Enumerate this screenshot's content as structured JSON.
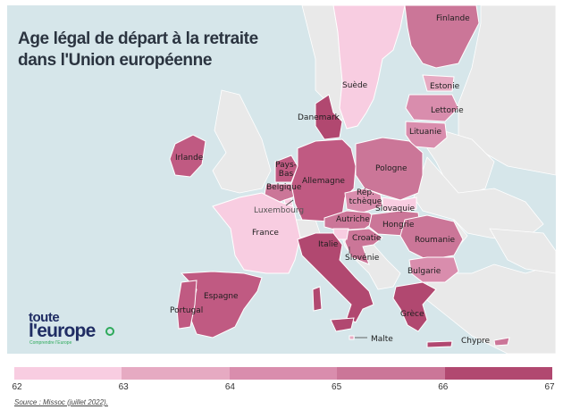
{
  "title": {
    "line1": "Age légal de départ à la retraite",
    "line2": "dans l'Union européenne"
  },
  "countries": [
    {
      "id": "finlande",
      "label": "Finlande",
      "value": 65
    },
    {
      "id": "suede",
      "label": "Suède",
      "value": 62
    },
    {
      "id": "estonie",
      "label": "Estonie",
      "value": 63
    },
    {
      "id": "lettonie",
      "label": "Lettonie",
      "value": 64
    },
    {
      "id": "lituanie",
      "label": "Lituanie",
      "value": 64
    },
    {
      "id": "danemark",
      "label": "Danemark",
      "value": 67
    },
    {
      "id": "irlande",
      "label": "Irlande",
      "value": 66
    },
    {
      "id": "pays-bas",
      "label": "Pays-\nBas",
      "value": 66
    },
    {
      "id": "belgique",
      "label": "Belgique",
      "value": 65
    },
    {
      "id": "allemagne",
      "label": "Allemagne",
      "value": 66
    },
    {
      "id": "pologne",
      "label": "Pologne",
      "value": 65
    },
    {
      "id": "rep-tcheque",
      "label": "Rép.\ntchèque",
      "value": 64
    },
    {
      "id": "slovaquie",
      "label": "Slovaquie",
      "value": 62
    },
    {
      "id": "luxembourg",
      "label": "Luxembourg",
      "value": 62
    },
    {
      "id": "autriche",
      "label": "Autriche",
      "value": 65
    },
    {
      "id": "hongrie",
      "label": "Hongrie",
      "value": 65
    },
    {
      "id": "france",
      "label": "France",
      "value": 62
    },
    {
      "id": "roumanie",
      "label": "Roumanie",
      "value": 65
    },
    {
      "id": "croatie",
      "label": "Croatie",
      "value": 65
    },
    {
      "id": "slovenie",
      "label": "Slovénie",
      "value": 62
    },
    {
      "id": "italie",
      "label": "Italie",
      "value": 67
    },
    {
      "id": "bulgarie",
      "label": "Bulgarie",
      "value": 64
    },
    {
      "id": "espagne",
      "label": "Espagne",
      "value": 66
    },
    {
      "id": "portugal",
      "label": "Portugal",
      "value": 66
    },
    {
      "id": "grece",
      "label": "Grèce",
      "value": 67
    },
    {
      "id": "malte",
      "label": "Malte",
      "value": 63
    },
    {
      "id": "chypre",
      "label": "Chypre",
      "value": 65
    }
  ],
  "legend": {
    "ticks": [
      "62",
      "63",
      "64",
      "65",
      "66",
      "67"
    ],
    "colors": [
      "#f8cde1",
      "#e6aac2",
      "#d98dad",
      "#cb7698",
      "#c05a82",
      "#b14870"
    ],
    "range": [
      62,
      67
    ]
  },
  "colors": {
    "sea": "#d6e6ea",
    "non_eu": "#e9e9e9",
    "border": "#ffffff"
  },
  "logo": {
    "line1": "toute",
    "line2": "l'europe",
    "tagline": "Comprendre l'Europe"
  },
  "source": "Source : Missoc (juillet 2022)."
}
